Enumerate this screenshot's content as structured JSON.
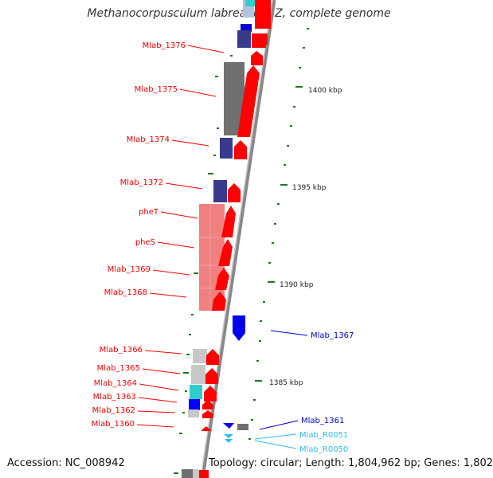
{
  "title": "Methanocorpusculum labreanum Z, complete genome",
  "footer": {
    "accession": "Accession: NC_008942",
    "topology": "Topology: circular; Length: 1,804,962 bp; Genes: 1,802"
  },
  "colors": {
    "forward_gene": "#ff0000",
    "reverse_gene": "#0000ff",
    "rna_gene": "#33ccee",
    "navy_feature": "#3a3a8c",
    "dark_gray_feature": "#707070",
    "light_gray_feature": "#c8c8c8",
    "salmon_feature": "#f08080",
    "cyan_feature": "#33cccc",
    "tick_mark": "#1a7a1a"
  },
  "scale_labels": [
    "1400 kbp",
    "1395 kbp",
    "1390 kbp",
    "1385 kbp"
  ],
  "left_labels": [
    "Mlab_1376",
    "Mlab_1375",
    "Mlab_1374",
    "Mlab_1372",
    "pheT",
    "pheS",
    "Mlab_1369",
    "Mlab_1368",
    "Mlab_1366",
    "Mlab_1365",
    "Mlab_1364",
    "Mlab_1363",
    "Mlab_1362",
    "Mlab_1360"
  ],
  "right_labels": [
    "Mlab_1367",
    "Mlab_1361",
    "Mlab_R0051",
    "Mlab_R0050"
  ]
}
